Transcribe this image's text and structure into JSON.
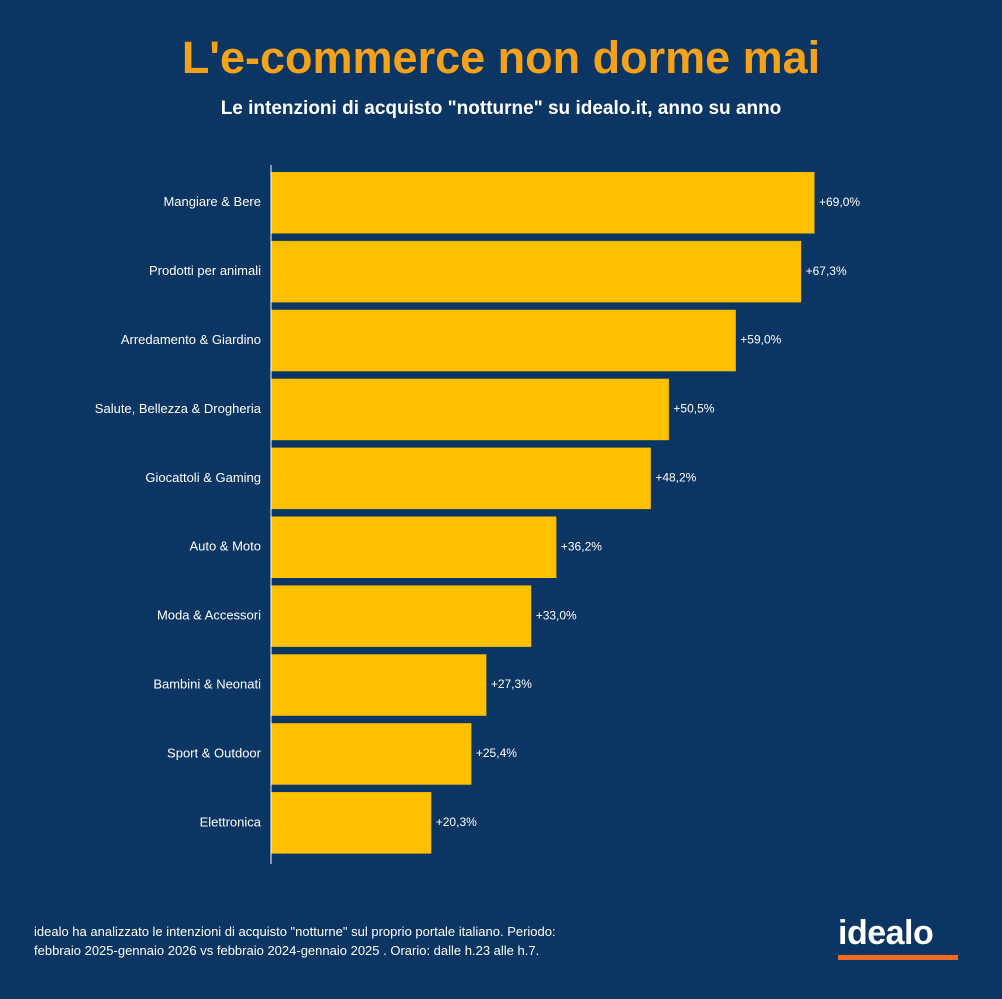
{
  "title": "L'e-commerce non dorme mai",
  "subtitle": "Le intenzioni di acquisto \"notturne\" su idealo.it, anno su anno",
  "colors": {
    "background": "#0b3563",
    "title": "#f5a21b",
    "bar": "#ffc000",
    "text": "#ffffff",
    "logo_underline": "#f26a21"
  },
  "chart_data": {
    "type": "bar",
    "orientation": "horizontal",
    "title": "L'e-commerce non dorme mai",
    "subtitle": "Le intenzioni di acquisto \"notturne\" su idealo.it, anno su anno",
    "xlabel": "",
    "ylabel": "",
    "categories": [
      "Mangiare & Bere",
      "Prodotti per animali",
      "Arredamento & Giardino",
      "Salute, Bellezza & Drogheria",
      "Giocattoli & Gaming",
      "Auto & Moto",
      "Moda & Accessori",
      "Bambini & Neonati",
      "Sport & Outdoor",
      "Elettronica"
    ],
    "values": [
      69.0,
      67.3,
      59.0,
      50.5,
      48.2,
      36.2,
      33.0,
      27.3,
      25.4,
      20.3
    ],
    "value_labels": [
      "+69,0%",
      "+67,3%",
      "+59,0%",
      "+50,5%",
      "+48,2%",
      "+36,2%",
      "+33,0%",
      "+27,3%",
      "+25,4%",
      "+20,3%"
    ],
    "xlim": [
      0,
      69.0
    ],
    "grid": false,
    "legend": "none"
  },
  "footnote": {
    "line1": "idealo ha analizzato le intenzioni di acquisto \"notturne\" sul proprio portale italiano. Periodo:",
    "line2": "febbraio 2025-gennaio 2026 vs febbraio 2024-gennaio 2025 . Orario: dalle h.23 alle h.7."
  },
  "logo": {
    "text": "idealo"
  }
}
